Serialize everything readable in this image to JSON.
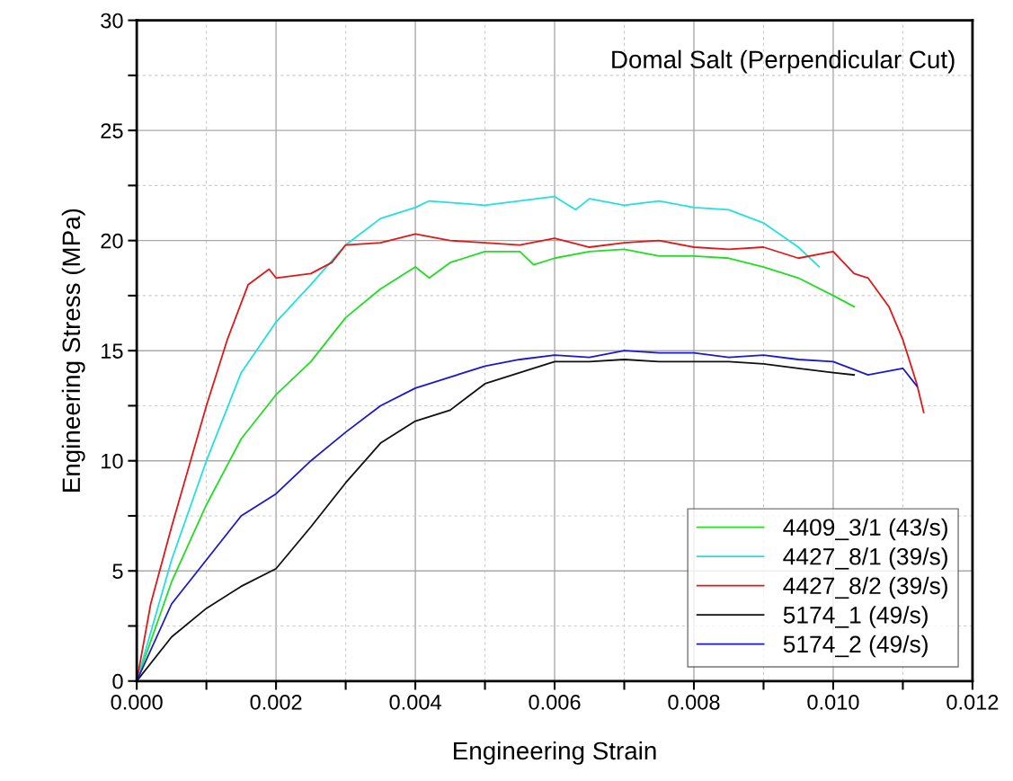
{
  "chart_data": {
    "type": "line",
    "title": "Domal Salt (Perpendicular Cut)",
    "xlabel": "Engineering Strain",
    "ylabel": "Engineering Stress (MPa)",
    "xlim": [
      0,
      0.012
    ],
    "ylim": [
      0,
      30
    ],
    "xticks": [
      {
        "value": 0,
        "label": "0.000"
      },
      {
        "value": 0.001,
        "label": null
      },
      {
        "value": 0.002,
        "label": "0.002"
      },
      {
        "value": 0.003,
        "label": null
      },
      {
        "value": 0.004,
        "label": "0.004"
      },
      {
        "value": 0.005,
        "label": null
      },
      {
        "value": 0.006,
        "label": "0.006"
      },
      {
        "value": 0.007,
        "label": null
      },
      {
        "value": 0.008,
        "label": "0.008"
      },
      {
        "value": 0.009,
        "label": null
      },
      {
        "value": 0.01,
        "label": "0.010"
      },
      {
        "value": 0.011,
        "label": null
      },
      {
        "value": 0.012,
        "label": "0.012"
      }
    ],
    "yticks": [
      0,
      {
        "value": 2.5,
        "label": null
      },
      5,
      {
        "value": 7.5,
        "label": null
      },
      10,
      {
        "value": 12.5,
        "label": null
      },
      15,
      {
        "value": 17.5,
        "label": null
      },
      20,
      {
        "value": 22.5,
        "label": null
      },
      25,
      {
        "value": 27.5,
        "label": null
      },
      30
    ],
    "grid": true,
    "legend": "bottom right",
    "marker": "none",
    "line_style": "solid",
    "series": [
      {
        "name": "4409_3/1 (43/s)",
        "color": "#22dd22",
        "x": [
          0,
          0.0005,
          0.001,
          0.0015,
          0.002,
          0.0025,
          0.003,
          0.0035,
          0.004,
          0.0042,
          0.0045,
          0.005,
          0.0055,
          0.0057,
          0.006,
          0.0065,
          0.007,
          0.0075,
          0.008,
          0.0085,
          0.009,
          0.0095,
          0.01,
          0.0103
        ],
        "values": [
          0,
          4.5,
          8,
          11,
          13,
          14.5,
          16.5,
          17.8,
          18.8,
          18.3,
          19,
          19.5,
          19.5,
          18.9,
          19.2,
          19.5,
          19.6,
          19.3,
          19.3,
          19.2,
          18.8,
          18.3,
          17.5,
          17
        ]
      },
      {
        "name": "4427_8/1 (39/s)",
        "color": "#22e0e0",
        "x": [
          0,
          0.0005,
          0.001,
          0.0015,
          0.002,
          0.0025,
          0.003,
          0.0035,
          0.004,
          0.0042,
          0.005,
          0.006,
          0.0063,
          0.0065,
          0.007,
          0.0075,
          0.008,
          0.0085,
          0.009,
          0.0095,
          0.0098
        ],
        "values": [
          0,
          5.5,
          10,
          14,
          16.3,
          18,
          19.8,
          21,
          21.5,
          21.8,
          21.6,
          22,
          21.4,
          21.9,
          21.6,
          21.8,
          21.5,
          21.4,
          20.8,
          19.7,
          18.8
        ]
      },
      {
        "name": "4427_8/2 (39/s)",
        "color": "#e01818",
        "x": [
          0,
          0.0002,
          0.0005,
          0.001,
          0.0013,
          0.0016,
          0.0019,
          0.002,
          0.0025,
          0.0028,
          0.003,
          0.0035,
          0.004,
          0.0045,
          0.005,
          0.0055,
          0.006,
          0.0065,
          0.007,
          0.0075,
          0.008,
          0.0085,
          0.009,
          0.0095,
          0.01,
          0.0103,
          0.0105,
          0.0108,
          0.011,
          0.0112,
          0.0113
        ],
        "values": [
          0,
          3.5,
          7,
          12.5,
          15.5,
          18,
          18.7,
          18.3,
          18.5,
          19,
          19.8,
          19.9,
          20.3,
          20,
          19.9,
          19.8,
          20.1,
          19.7,
          19.9,
          20,
          19.7,
          19.6,
          19.7,
          19.2,
          19.5,
          18.5,
          18.3,
          17,
          15.5,
          13.5,
          12.2
        ]
      },
      {
        "name": "5174_1 (49/s)",
        "color": "#111111",
        "x": [
          0,
          0.0005,
          0.001,
          0.0015,
          0.002,
          0.0025,
          0.003,
          0.0035,
          0.004,
          0.0045,
          0.005,
          0.0055,
          0.006,
          0.0065,
          0.007,
          0.0075,
          0.008,
          0.0085,
          0.009,
          0.0095,
          0.01,
          0.0103
        ],
        "values": [
          0,
          2,
          3.3,
          4.3,
          5.1,
          7,
          9,
          10.8,
          11.8,
          12.3,
          13.5,
          14,
          14.5,
          14.5,
          14.6,
          14.5,
          14.5,
          14.5,
          14.4,
          14.2,
          14,
          13.9
        ]
      },
      {
        "name": "5174_2 (49/s)",
        "color": "#1a1acc",
        "x": [
          0,
          0.0005,
          0.001,
          0.0015,
          0.002,
          0.0025,
          0.003,
          0.0035,
          0.004,
          0.0045,
          0.005,
          0.0055,
          0.006,
          0.0065,
          0.007,
          0.0075,
          0.008,
          0.0085,
          0.009,
          0.0095,
          0.01,
          0.0105,
          0.011,
          0.0112
        ],
        "values": [
          0,
          3.5,
          5.5,
          7.5,
          8.5,
          10,
          11.3,
          12.5,
          13.3,
          13.8,
          14.3,
          14.6,
          14.8,
          14.7,
          15,
          14.9,
          14.9,
          14.7,
          14.8,
          14.6,
          14.5,
          13.9,
          14.2,
          13.4
        ]
      }
    ]
  }
}
